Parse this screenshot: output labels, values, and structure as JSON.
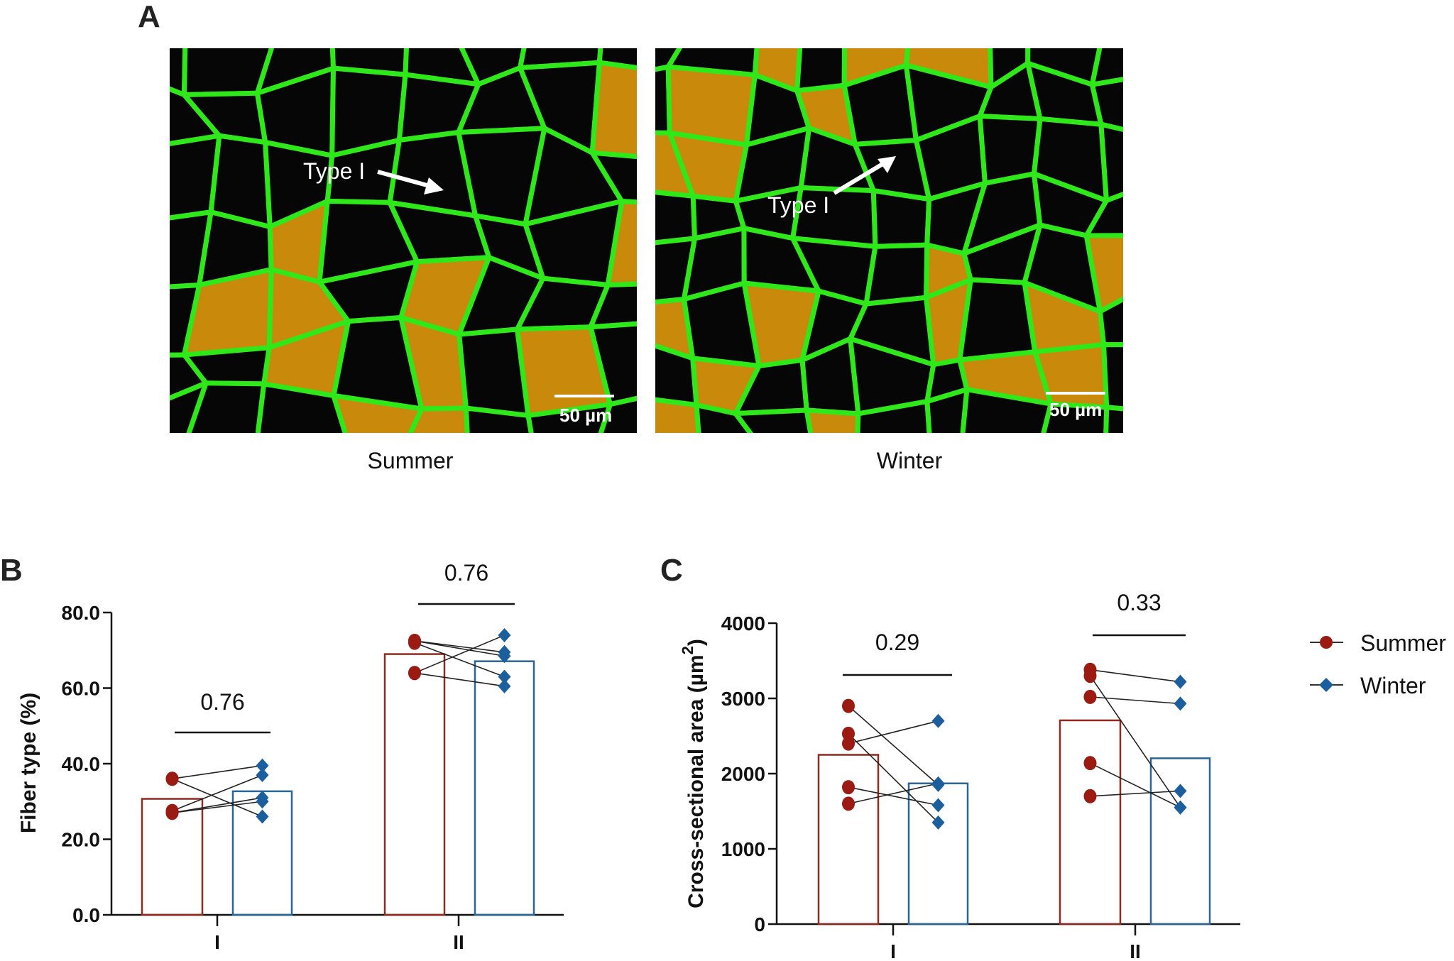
{
  "panel_labels": {
    "a": "A",
    "b": "B",
    "c": "C"
  },
  "micrographs": [
    {
      "caption": "Summer",
      "annotation": "Type I",
      "scale_bar": "50 µm"
    },
    {
      "caption": "Winter",
      "annotation": "Type I",
      "scale_bar": "50 µm"
    }
  ],
  "legend": [
    {
      "label": "Summer",
      "color": "#9b1b12",
      "marker": "circle"
    },
    {
      "label": "Winter",
      "color": "#1c5f9e",
      "marker": "diamond"
    }
  ],
  "chart_data": [
    {
      "type": "bar",
      "panel": "B",
      "ylabel": "Fiber type (%)",
      "ylim": [
        0,
        80
      ],
      "yticks": [
        "0.0",
        "20.0",
        "40.0",
        "60.0",
        "80.0"
      ],
      "categories": [
        "I",
        "II"
      ],
      "series": [
        {
          "name": "Summer",
          "means": [
            30.7,
            69.0
          ]
        },
        {
          "name": "Winter",
          "means": [
            32.7,
            67.1
          ]
        }
      ],
      "paired_points": [
        {
          "category": "I",
          "pairs": [
            [
              36,
              39.5
            ],
            [
              36,
              26
            ],
            [
              27.5,
              37
            ],
            [
              27,
              31
            ],
            [
              27,
              30
            ]
          ]
        },
        {
          "category": "II",
          "pairs": [
            [
              72.5,
              69.5
            ],
            [
              72.5,
              68.5
            ],
            [
              72,
              63
            ],
            [
              64,
              74
            ],
            [
              64,
              60.5
            ]
          ]
        }
      ],
      "p_values": [
        "0.76",
        "0.76"
      ]
    },
    {
      "type": "bar",
      "panel": "C",
      "ylabel": "Cross-sectional area (µm²)",
      "ylabel_main": "Cross-sectional area (µm",
      "ylabel_sup": "2",
      "ylabel_end": ")",
      "ylim": [
        0,
        4000
      ],
      "yticks": [
        "0",
        "1000",
        "2000",
        "3000",
        "4000"
      ],
      "categories": [
        "I",
        "II"
      ],
      "series": [
        {
          "name": "Summer",
          "means": [
            2250,
            2708
          ]
        },
        {
          "name": "Winter",
          "means": [
            1870,
            2204
          ]
        }
      ],
      "paired_points": [
        {
          "category": "I",
          "pairs": [
            [
              2900,
              1850
            ],
            [
              2530,
              1350
            ],
            [
              2400,
              2700
            ],
            [
              1820,
              1580
            ],
            [
              1600,
              1870
            ]
          ]
        },
        {
          "category": "II",
          "pairs": [
            [
              3380,
              3220
            ],
            [
              3300,
              1550
            ],
            [
              3020,
              2930
            ],
            [
              2140,
              1550
            ],
            [
              1700,
              1770
            ]
          ]
        }
      ],
      "p_values": [
        "0.29",
        "0.33"
      ]
    }
  ]
}
